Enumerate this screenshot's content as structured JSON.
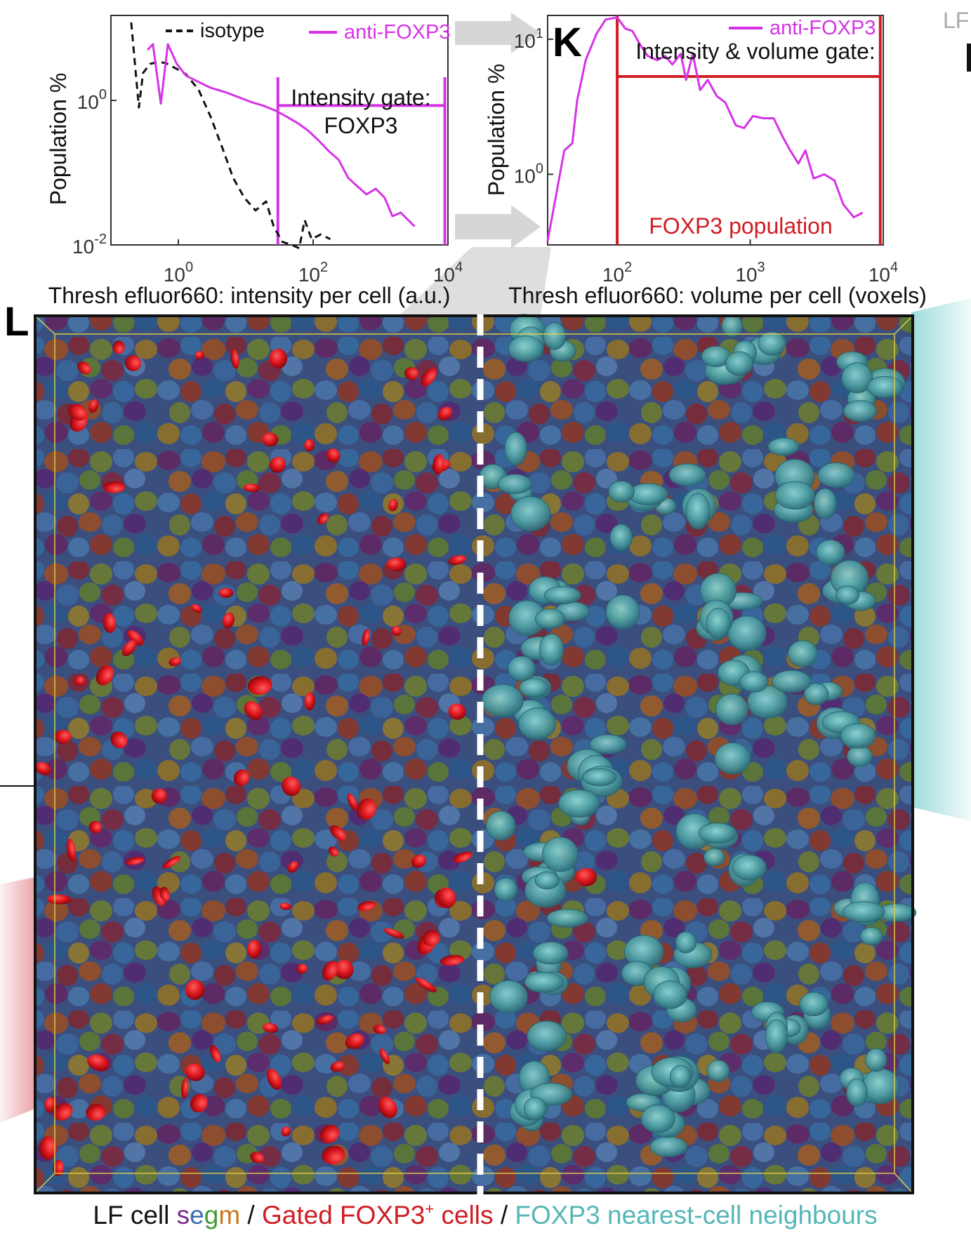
{
  "panels": {
    "k_letter": "K",
    "l_letter": "L",
    "side_label": "LF"
  },
  "chart_data": [
    {
      "type": "line",
      "log_x": true,
      "log_y": true,
      "xlim": [
        0.1,
        10000
      ],
      "ylim": [
        0.01,
        15
      ],
      "xlabel": "Thresh efluor660: intensity per cell (a.u.)",
      "ylabel": "Population %",
      "x_ticks": [
        {
          "value": 1,
          "base": "10",
          "exp": "0"
        },
        {
          "value": 100,
          "base": "10",
          "exp": "2"
        },
        {
          "value": 10000,
          "base": "10",
          "exp": "4"
        }
      ],
      "y_ticks": [
        {
          "value": 0.01,
          "base": "10",
          "exp": "-2"
        },
        {
          "value": 1,
          "base": "10",
          "exp": "0"
        }
      ],
      "series": [
        {
          "name": "isotype",
          "color": "#111111",
          "dash": true,
          "points": [
            [
              0.2,
              12
            ],
            [
              0.26,
              0.8
            ],
            [
              0.3,
              2.4
            ],
            [
              0.38,
              3.2
            ],
            [
              0.5,
              3.4
            ],
            [
              0.65,
              3.3
            ],
            [
              0.9,
              2.8
            ],
            [
              1.3,
              2.3
            ],
            [
              2.0,
              1.4
            ],
            [
              3.0,
              0.6
            ],
            [
              4.5,
              0.22
            ],
            [
              6.5,
              0.085
            ],
            [
              9.5,
              0.045
            ],
            [
              14,
              0.03
            ],
            [
              20,
              0.04
            ],
            [
              26,
              0.018
            ],
            [
              35,
              0.011
            ],
            [
              48,
              0.01
            ],
            [
              62,
              0.009
            ],
            [
              75,
              0.022
            ],
            [
              95,
              0.012
            ],
            [
              130,
              0.014
            ],
            [
              180,
              0.012
            ]
          ]
        },
        {
          "name": "anti-FOXP3",
          "color": "#d633e6",
          "dash": false,
          "points": [
            [
              0.35,
              5.0
            ],
            [
              0.42,
              6.0
            ],
            [
              0.55,
              0.9
            ],
            [
              0.7,
              6.0
            ],
            [
              0.95,
              3.2
            ],
            [
              1.3,
              2.2
            ],
            [
              2.0,
              1.8
            ],
            [
              3.0,
              1.5
            ],
            [
              5.0,
              1.3
            ],
            [
              8.0,
              1.1
            ],
            [
              12,
              0.95
            ],
            [
              18,
              0.85
            ],
            [
              28,
              0.72
            ],
            [
              40,
              0.6
            ],
            [
              60,
              0.48
            ],
            [
              85,
              0.38
            ],
            [
              120,
              0.28
            ],
            [
              170,
              0.2
            ],
            [
              240,
              0.15
            ],
            [
              330,
              0.085
            ],
            [
              450,
              0.065
            ],
            [
              620,
              0.05
            ],
            [
              850,
              0.06
            ],
            [
              1150,
              0.045
            ],
            [
              1500,
              0.025
            ],
            [
              2000,
              0.028
            ],
            [
              3200,
              0.018
            ]
          ]
        }
      ],
      "gate": {
        "label_line1": "Intensity gate:",
        "label_line2": "FOXP3",
        "x_min": 30,
        "x_max": 9000,
        "level": 0.85,
        "color": "#d633e6"
      }
    },
    {
      "type": "line",
      "log_x": true,
      "log_y": true,
      "xlim": [
        30,
        10000
      ],
      "ylim": [
        0.3,
        15
      ],
      "xlabel": "Thresh efluor660: volume per cell (voxels)",
      "ylabel": "Population %",
      "x_ticks": [
        {
          "value": 100,
          "base": "10",
          "exp": "2"
        },
        {
          "value": 1000,
          "base": "10",
          "exp": "3"
        },
        {
          "value": 10000,
          "base": "10",
          "exp": "4"
        }
      ],
      "y_ticks": [
        {
          "value": 1,
          "base": "10",
          "exp": "0"
        },
        {
          "value": 10,
          "base": "10",
          "exp": "1"
        }
      ],
      "series": [
        {
          "name": "anti-FOXP3",
          "color": "#d633e6",
          "dash": false,
          "points": [
            [
              30,
              0.32
            ],
            [
              40,
              1.5
            ],
            [
              46,
              1.7
            ],
            [
              50,
              3.5
            ],
            [
              58,
              7.0
            ],
            [
              70,
              11.0
            ],
            [
              82,
              14.0
            ],
            [
              100,
              14.5
            ],
            [
              115,
              12.0
            ],
            [
              130,
              11.5
            ],
            [
              150,
              9.0
            ],
            [
              170,
              7.5
            ],
            [
              200,
              7.0
            ],
            [
              230,
              7.5
            ],
            [
              260,
              6.5
            ],
            [
              300,
              7.8
            ],
            [
              330,
              5.0
            ],
            [
              370,
              7.8
            ],
            [
              420,
              4.2
            ],
            [
              480,
              5.0
            ],
            [
              560,
              3.8
            ],
            [
              650,
              3.4
            ],
            [
              780,
              2.3
            ],
            [
              900,
              2.2
            ],
            [
              1050,
              2.7
            ],
            [
              1250,
              2.6
            ],
            [
              1500,
              2.6
            ],
            [
              1750,
              1.9
            ],
            [
              2000,
              1.5
            ],
            [
              2300,
              1.2
            ],
            [
              2600,
              1.5
            ],
            [
              3000,
              0.93
            ],
            [
              3600,
              1.0
            ],
            [
              4300,
              0.9
            ],
            [
              5000,
              0.6
            ],
            [
              6000,
              0.48
            ],
            [
              7000,
              0.52
            ]
          ]
        }
      ],
      "gate": {
        "label_line1": "Intensity & volume gate:",
        "population_label": "FOXP3 population",
        "x_min": 100,
        "x_max": 9500,
        "level": 5.3,
        "color": "#d01c22"
      }
    }
  ],
  "image_panel": {
    "left_content": "LF cell segmentation with gated FOXP3+ cells (red)",
    "right_content": "FOXP3 nearest-cell neighbours (teal)"
  },
  "caption": {
    "part1": "LF cell ",
    "segm_letters": [
      "s",
      "e",
      "g",
      "m"
    ],
    "segm_colors": [
      "#7a2a8c",
      "#3a6cb0",
      "#3f9a3a",
      "#c8781a"
    ],
    "sep1": " / ",
    "part2": "Gated FOXP3",
    "sup": "+",
    "part3": " cells",
    "sep2": " / ",
    "part4": "FOXP3 nearest-cell neighbours",
    "colors": {
      "black": "#111111",
      "red": "#d01c22",
      "teal": "#55b6b6"
    }
  }
}
